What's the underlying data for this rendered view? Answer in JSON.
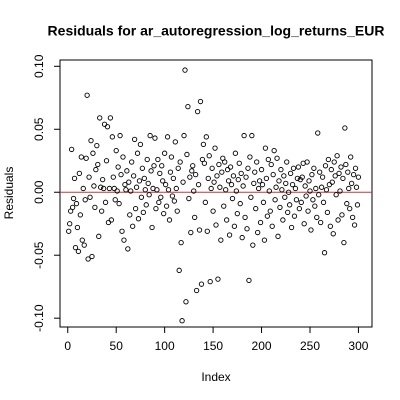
{
  "chart_data": {
    "type": "scatter",
    "title": "Residuals for ar_autoregression_log_returns_EUR",
    "xlabel": "Index",
    "ylabel": "Residuals",
    "xlim": [
      -8,
      314
    ],
    "ylim": [
      -0.107,
      0.105
    ],
    "xticks": [
      0,
      50,
      100,
      150,
      200,
      250,
      300
    ],
    "yticks": [
      {
        "value": -0.1,
        "label": "-0.10"
      },
      -0.05,
      {
        "value": 0,
        "label": "0.00"
      },
      0.05,
      {
        "value": 0.1,
        "label": "0.10"
      }
    ],
    "hline": 0,
    "hline_color": "#cc3333",
    "color": "#000000",
    "x": [
      1,
      2,
      3,
      4,
      5,
      6,
      7,
      8,
      9,
      10,
      11,
      12,
      13,
      14,
      15,
      16,
      17,
      18,
      19,
      20,
      21,
      22,
      23,
      24,
      25,
      26,
      27,
      28,
      29,
      30,
      31,
      32,
      33,
      34,
      35,
      36,
      37,
      38,
      39,
      40,
      41,
      42,
      43,
      44,
      45,
      46,
      47,
      48,
      49,
      50,
      51,
      52,
      53,
      54,
      55,
      56,
      57,
      58,
      59,
      60,
      61,
      62,
      63,
      64,
      65,
      66,
      67,
      68,
      69,
      70,
      71,
      72,
      73,
      74,
      75,
      76,
      77,
      78,
      79,
      80,
      81,
      82,
      83,
      84,
      85,
      86,
      87,
      88,
      89,
      90,
      91,
      92,
      93,
      94,
      95,
      96,
      97,
      98,
      99,
      100,
      101,
      102,
      103,
      104,
      105,
      106,
      107,
      108,
      109,
      110,
      111,
      112,
      113,
      114,
      115,
      116,
      117,
      118,
      119,
      120,
      121,
      122,
      123,
      124,
      125,
      126,
      127,
      128,
      129,
      130,
      131,
      132,
      133,
      134,
      135,
      136,
      137,
      138,
      139,
      140,
      141,
      142,
      143,
      144,
      145,
      146,
      147,
      148,
      149,
      150,
      151,
      152,
      153,
      154,
      155,
      156,
      157,
      158,
      159,
      160,
      161,
      162,
      163,
      164,
      165,
      166,
      167,
      168,
      169,
      170,
      171,
      172,
      173,
      174,
      175,
      176,
      177,
      178,
      179,
      180,
      181,
      182,
      183,
      184,
      185,
      186,
      187,
      188,
      189,
      190,
      191,
      192,
      193,
      194,
      195,
      196,
      197,
      198,
      199,
      200,
      201,
      202,
      203,
      204,
      205,
      206,
      207,
      208,
      209,
      210,
      211,
      212,
      213,
      214,
      215,
      216,
      217,
      218,
      219,
      220,
      221,
      222,
      223,
      224,
      225,
      226,
      227,
      228,
      229,
      230,
      231,
      232,
      233,
      234,
      235,
      236,
      237,
      238,
      239,
      240,
      241,
      242,
      243,
      244,
      245,
      246,
      247,
      248,
      249,
      250,
      251,
      252,
      253,
      254,
      255,
      256,
      257,
      258,
      259,
      260,
      261,
      262,
      263,
      264,
      265,
      266,
      267,
      268,
      269,
      270,
      271,
      272,
      273,
      274,
      275,
      276,
      277,
      278,
      279,
      280,
      281,
      282,
      283,
      284,
      285,
      286,
      287,
      288,
      289,
      290,
      291,
      292,
      293,
      294,
      295,
      296,
      297,
      298,
      299,
      300
    ],
    "values": [
      -0.031,
      -0.025,
      -0.015,
      0.034,
      -0.012,
      -0.005,
      0.011,
      -0.044,
      -0.009,
      -0.028,
      -0.047,
      0.015,
      -0.018,
      0.028,
      -0.038,
      0.003,
      -0.042,
      -0.006,
      0.027,
      0.077,
      -0.053,
      0.012,
      -0.004,
      0.041,
      -0.051,
      0.031,
      0.005,
      -0.012,
      0.018,
      0.037,
      0.022,
      -0.035,
      0.059,
      0.004,
      -0.015,
      0.01,
      0.003,
      0.054,
      -0.008,
      0.025,
      0.052,
      -0.024,
      0.003,
      0.059,
      -0.022,
      0.044,
      0.012,
      0.003,
      -0.006,
      0.033,
      0.001,
      0.02,
      -0.009,
      0.045,
      0.014,
      -0.031,
      0.028,
      -0.038,
      0.006,
      0.002,
      0.017,
      -0.045,
      0.008,
      -0.018,
      0.001,
      0.024,
      -0.027,
      0.013,
      0.042,
      -0.013,
      0.004,
      0.031,
      -0.021,
      0.009,
      0.038,
      -0.004,
      0.019,
      -0.016,
      0.011,
      0.002,
      -0.01,
      0.026,
      0.007,
      -0.002,
      0.045,
      0.017,
      -0.028,
      0.003,
      0.021,
      0.043,
      -0.013,
      0.002,
      0.026,
      -0.008,
      0.015,
      -0.004,
      0.021,
      0.009,
      -0.017,
      0.031,
      0.006,
      -0.011,
      0.044,
      0.002,
      -0.022,
      0.016,
      0.028,
      -0.003,
      0.011,
      -0.007,
      0.04,
      0.003,
      -0.015,
      0.019,
      -0.062,
      0.024,
      -0.04,
      -0.102,
      0.008,
      0.045,
      0.097,
      -0.087,
      0.03,
      0.068,
      -0.005,
      0.012,
      -0.032,
      0.017,
      0.021,
      0.001,
      -0.02,
      0.014,
      -0.078,
      0.064,
      0.006,
      -0.03,
      0.072,
      -0.073,
      0.026,
      0.038,
      0.023,
      -0.008,
      0.044,
      -0.031,
      0.011,
      0.029,
      -0.071,
      0.003,
      0.019,
      -0.015,
      0.008,
      0.035,
      -0.026,
      0.013,
      -0.069,
      0.022,
      0.004,
      -0.038,
      0.016,
      0.027,
      -0.011,
      0.024,
      0.002,
      -0.022,
      0.018,
      0.009,
      -0.034,
      0.02,
      0.006,
      -0.005,
      0.013,
      -0.027,
      0.031,
      0.001,
      -0.017,
      0.01,
      0.023,
      -0.009,
      0.015,
      -0.036,
      0.005,
      0.045,
      -0.02,
      0.012,
      -0.029,
      0.019,
      -0.07,
      0.028,
      -0.004,
      0.045,
      -0.042,
      0.007,
      0.016,
      -0.013,
      0.024,
      -0.032,
      0.003,
      0.009,
      -0.024,
      0.018,
      0.006,
      -0.008,
      -0.038,
      0.035,
      0.011,
      -0.019,
      0.026,
      0.001,
      -0.015,
      0.022,
      -0.027,
      0.014,
      0.033,
      -0.006,
      0.004,
      0.027,
      -0.035,
      0.009,
      -0.012,
      0.018,
      0.002,
      -0.022,
      0.013,
      -0.004,
      0.007,
      0.024,
      -0.016,
      0.0,
      -0.01,
      0.015,
      -0.028,
      0.006,
      0.019,
      -0.019,
      0.003,
      -0.006,
      0.011,
      0.02,
      -0.013,
      0.01,
      -0.008,
      0.012,
      0.023,
      -0.025,
      0.005,
      -0.003,
      0.024,
      -0.015,
      0.009,
      0.001,
      -0.03,
      0.014,
      -0.006,
      0.019,
      -0.011,
      0.003,
      -0.02,
      0.047,
      -0.002,
      0.016,
      -0.024,
      0.004,
      0.012,
      -0.008,
      -0.048,
      0.021,
      0.002,
      -0.016,
      0.026,
      0.006,
      -0.027,
      0.018,
      0.008,
      -0.033,
      0.024,
      0.013,
      -0.002,
      0.029,
      -0.022,
      0.015,
      0.001,
      0.02,
      -0.018,
      0.011,
      -0.04,
      0.051,
      0.022,
      -0.009,
      0.016,
      0.003,
      -0.013,
      0.028,
      0.007,
      -0.02,
      0.014,
      -0.026,
      0.019,
      0.004,
      -0.01,
      0.012
    ]
  }
}
